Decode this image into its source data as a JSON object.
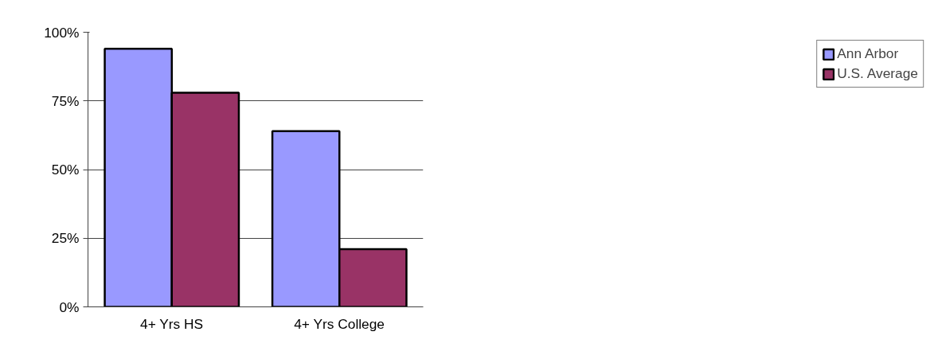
{
  "chart_data": {
    "type": "bar",
    "categories": [
      "4+ Yrs HS",
      "4+ Yrs College"
    ],
    "series": [
      {
        "name": "Ann Arbor",
        "color": "#9999ff",
        "values": [
          94,
          64
        ]
      },
      {
        "name": "U.S. Average",
        "color": "#993366",
        "values": [
          78,
          21
        ]
      }
    ],
    "ylim": [
      0,
      100
    ],
    "yticks": [
      {
        "value": 0,
        "label": "0%"
      },
      {
        "value": 25,
        "label": "25%"
      },
      {
        "value": 50,
        "label": "50%"
      },
      {
        "value": 75,
        "label": "75%"
      },
      {
        "value": 100,
        "label": "100%"
      }
    ],
    "grid": "y",
    "legend": "right"
  }
}
